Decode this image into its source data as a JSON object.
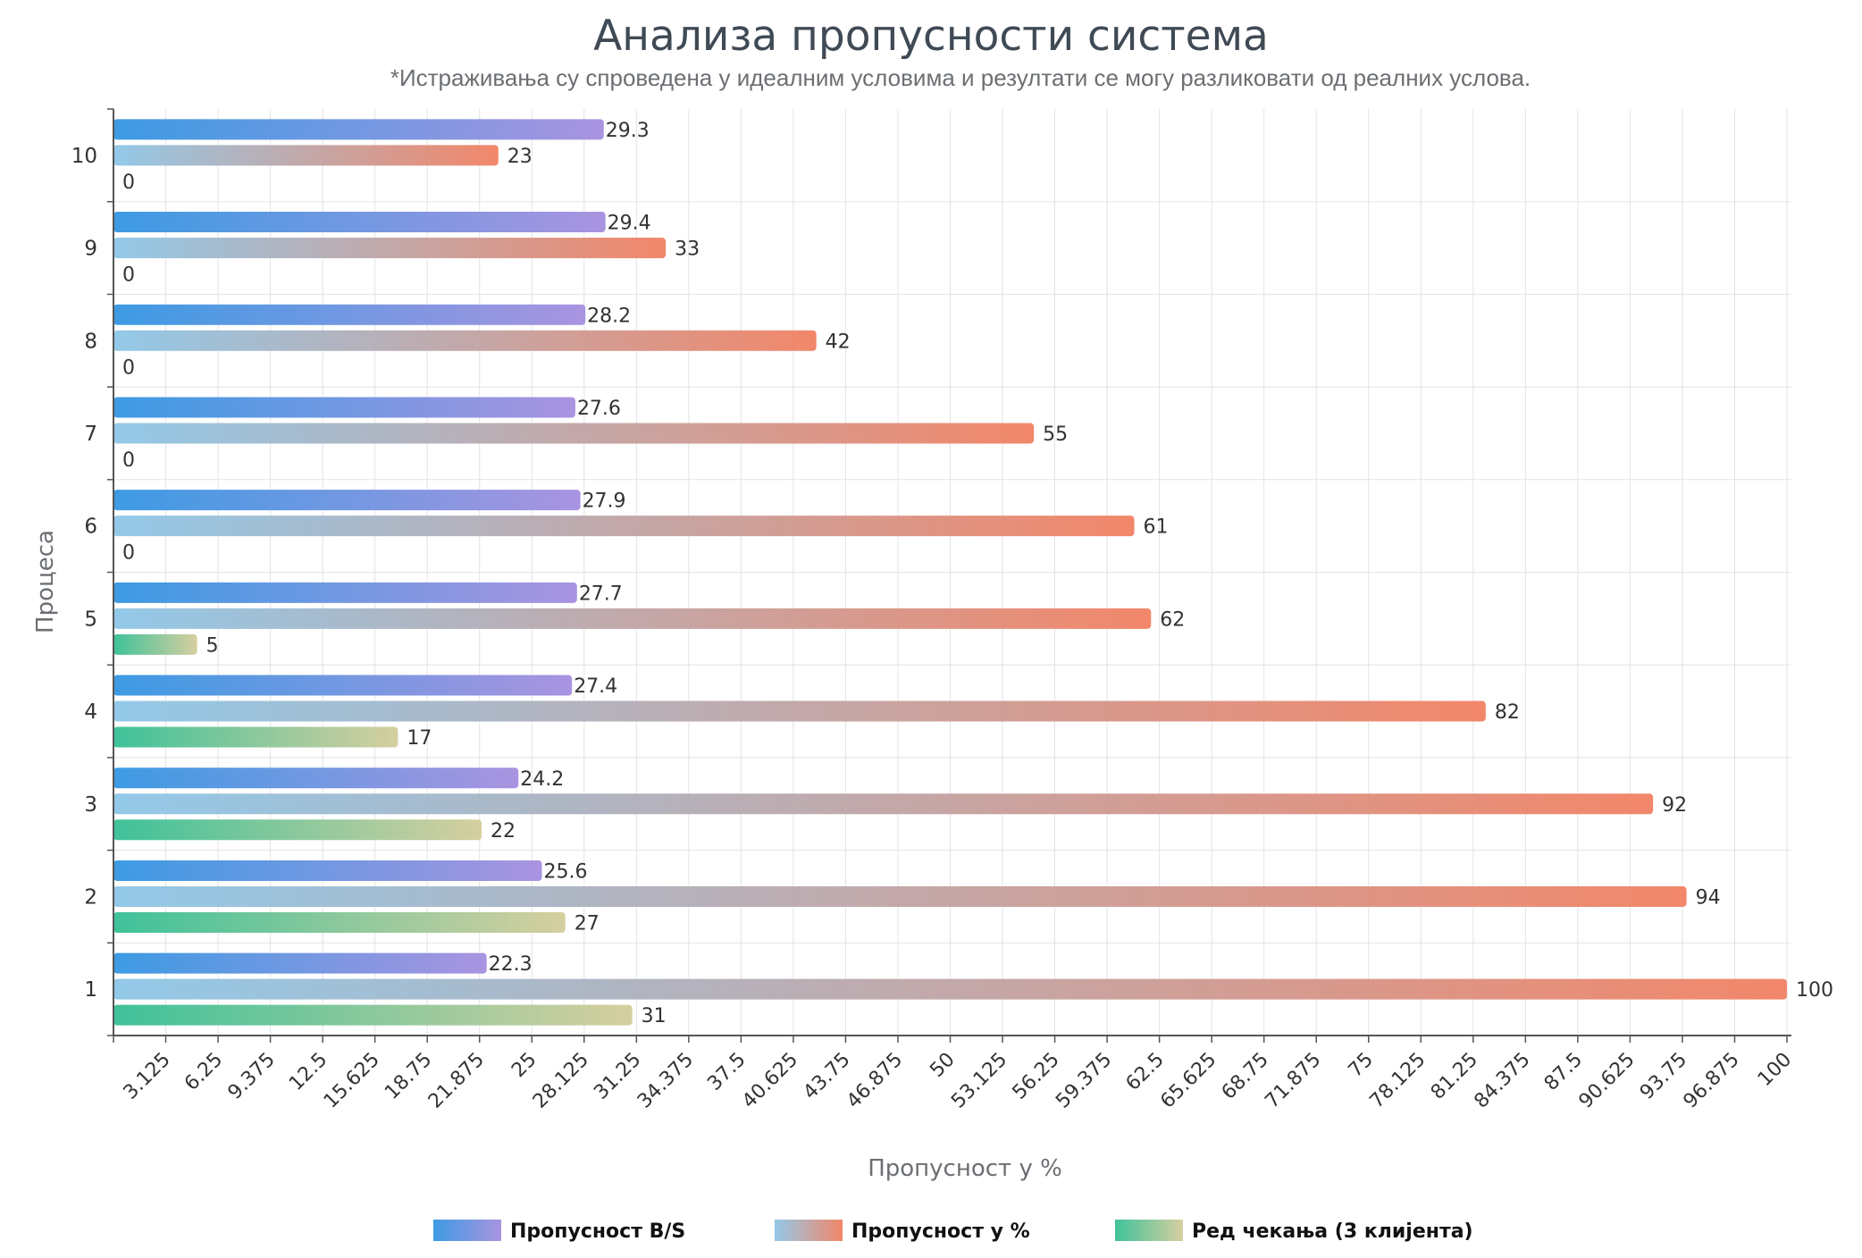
{
  "chart_data": {
    "type": "bar",
    "orientation": "horizontal",
    "title": "Анализа пропусности система",
    "subtitle": "*Истраживања су спроведена у идеалним условима и резултати се могу разликовати од реалних услова.",
    "xlabel": "Пропусност у %",
    "ylabel": "Процеса",
    "categories": [
      "1",
      "2",
      "3",
      "4",
      "5",
      "6",
      "7",
      "8",
      "9",
      "10"
    ],
    "xlim": [
      0,
      100
    ],
    "x_ticks": [
      "3.125",
      "6.25",
      "9.375",
      "12.5",
      "15.625",
      "18.75",
      "21.875",
      "25",
      "28.125",
      "31.25",
      "34.375",
      "37.5",
      "40.625",
      "43.75",
      "46.875",
      "50",
      "53.125",
      "56.25",
      "59.375",
      "62.5",
      "65.625",
      "68.75",
      "71.875",
      "75",
      "78.125",
      "81.25",
      "84.375",
      "87.5",
      "90.625",
      "93.75",
      "96.875",
      "100"
    ],
    "series": [
      {
        "name": "Пропусност B/S",
        "values": [
          22.3,
          25.6,
          24.2,
          27.4,
          27.7,
          27.9,
          27.6,
          28.2,
          29.4,
          29.3
        ],
        "labels": [
          "22.3",
          "25.6",
          "24.2",
          "27.4",
          "27.7",
          "27.9",
          "27.6",
          "28.2",
          "29.4",
          "29.3"
        ],
        "gradient": [
          "#3d9be3",
          "#a994e0"
        ]
      },
      {
        "name": "Пропусност у %",
        "values": [
          100,
          94,
          92,
          82,
          62,
          61,
          55,
          42,
          33,
          23
        ],
        "labels": [
          "100",
          "94",
          "92",
          "82",
          "62",
          "61",
          "55",
          "42",
          "33",
          "23"
        ],
        "gradient": [
          "#93c9e8",
          "#f2876a"
        ]
      },
      {
        "name": "Ред чекања (3 клијента)",
        "values": [
          31,
          27,
          22,
          17,
          5,
          0,
          0,
          0,
          0,
          0
        ],
        "labels": [
          "31",
          "27",
          "22",
          "17",
          "5",
          "0",
          "0",
          "0",
          "0",
          "0"
        ],
        "gradient": [
          "#3fc29a",
          "#d6cf9f"
        ]
      }
    ],
    "grid": true,
    "legend_position": "bottom"
  }
}
